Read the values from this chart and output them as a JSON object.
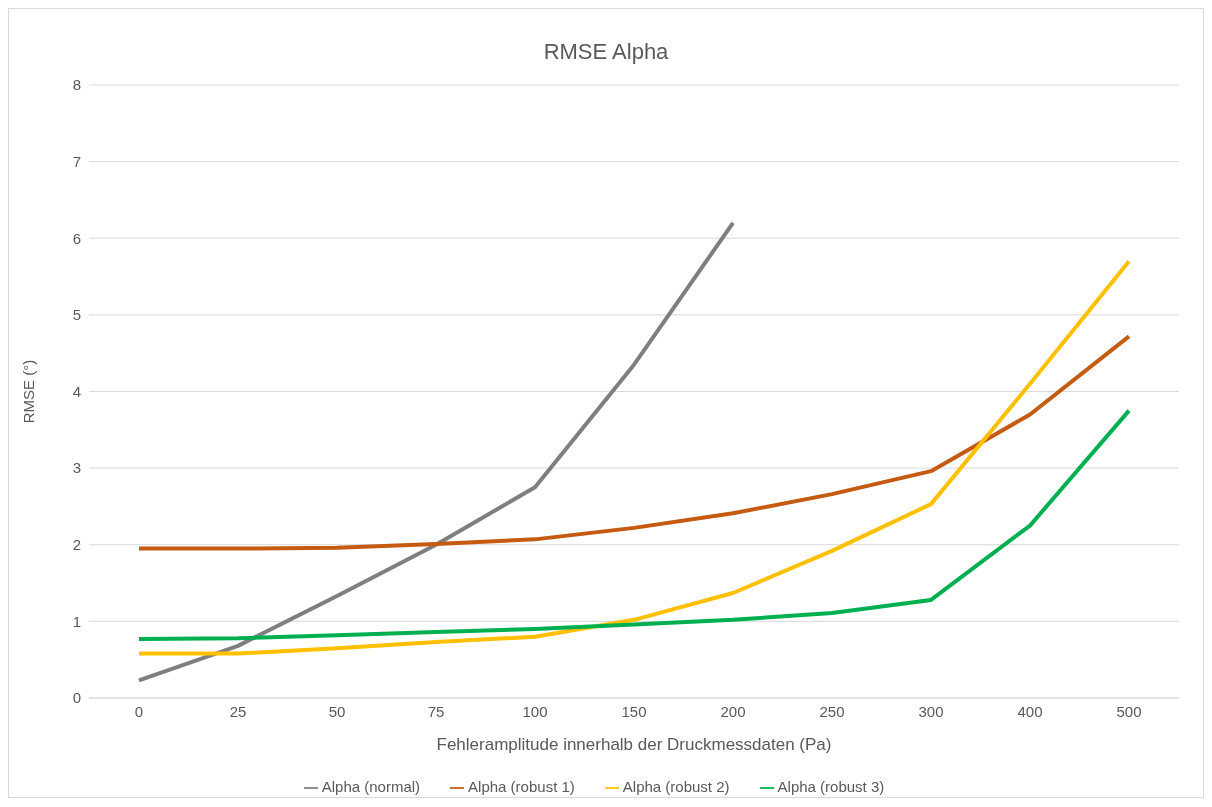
{
  "chart_data": {
    "type": "line",
    "title": "RMSE Alpha",
    "xlabel": "Fehleramplitude innerhalb der Druckmessdaten (Pa)",
    "ylabel": "RMSE (°)",
    "categories": [
      "0",
      "25",
      "50",
      "75",
      "100",
      "150",
      "200",
      "250",
      "300",
      "400",
      "500"
    ],
    "series": [
      {
        "name": "Alpha (normal)",
        "color": "#7f7f7f",
        "values": [
          0.23,
          0.68,
          1.33,
          2.0,
          2.75,
          4.35,
          6.2,
          null,
          null,
          null,
          null
        ]
      },
      {
        "name": "Alpha (robust 1)",
        "color": "#c55a11",
        "values": [
          1.95,
          1.95,
          1.96,
          2.01,
          2.07,
          2.22,
          2.41,
          2.66,
          2.96,
          3.7,
          4.72
        ]
      },
      {
        "name": "Alpha (robust 2)",
        "color": "#ffc000",
        "values": [
          0.58,
          0.58,
          0.65,
          0.73,
          0.8,
          1.02,
          1.37,
          1.92,
          2.53,
          4.1,
          5.7
        ]
      },
      {
        "name": "Alpha (robust 3)",
        "color": "#00b050",
        "values": [
          0.77,
          0.78,
          0.82,
          0.86,
          0.9,
          0.96,
          1.02,
          1.11,
          1.28,
          2.25,
          3.75
        ]
      }
    ],
    "ylim": [
      0,
      8
    ],
    "yticks": [
      0,
      1,
      2,
      3,
      4,
      5,
      6,
      7,
      8
    ],
    "grid": "y",
    "legend": "bottom",
    "marker": "none",
    "line_style": "solid"
  }
}
